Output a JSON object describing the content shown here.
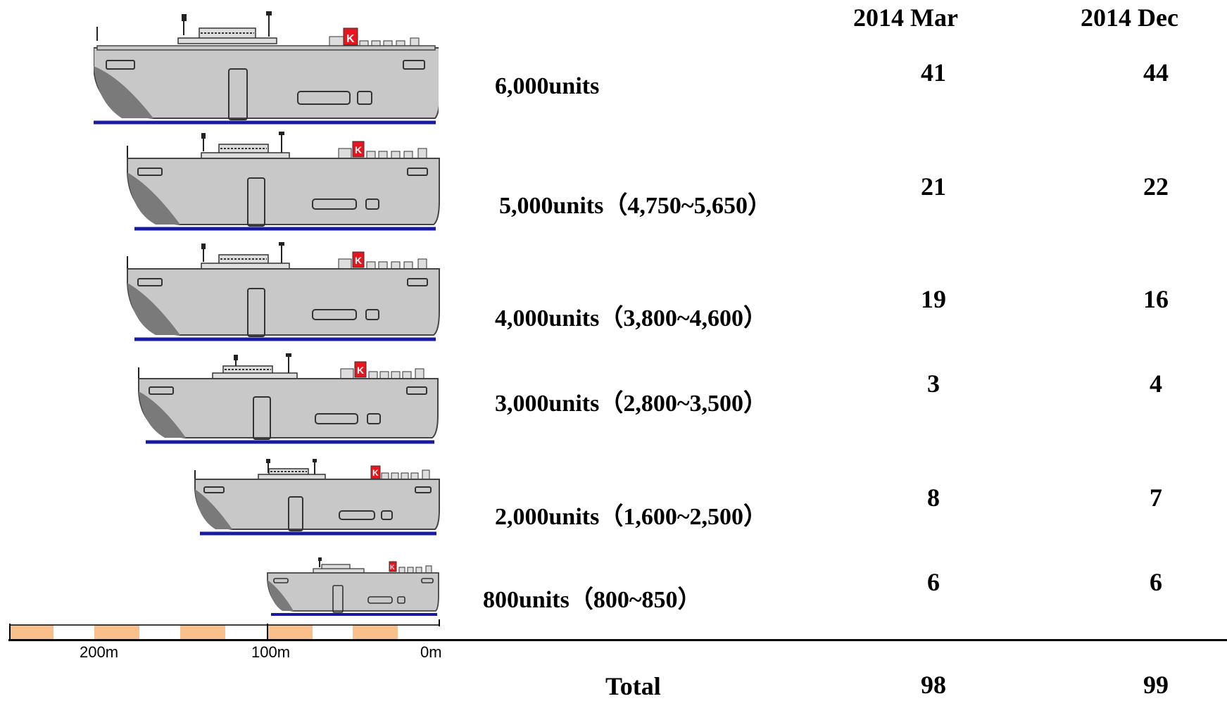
{
  "headers": {
    "col1": "2014 Mar",
    "col2": "2014 Dec"
  },
  "ships": [
    {
      "label": "6,000units",
      "mar": "41",
      "dec": "44"
    },
    {
      "label": "5,000units（4,750~5,650）",
      "mar": "21",
      "dec": "22"
    },
    {
      "label": "4,000units（3,800~4,600）",
      "mar": "19",
      "dec": "16"
    },
    {
      "label": "3,000units（2,800~3,500）",
      "mar": "3",
      "dec": "4"
    },
    {
      "label": "2,000units（1,600~2,500）",
      "mar": "8",
      "dec": "7"
    },
    {
      "label": "800units（800~850）",
      "mar": "6",
      "dec": "6"
    }
  ],
  "funnel_mark": "K",
  "scale": {
    "labels": [
      "200m",
      "100m",
      "0m"
    ]
  },
  "total": {
    "label": "Total",
    "mar": "98",
    "dec": "99"
  },
  "colors": {
    "hull": "#c8c8c8",
    "hull_dark": "#7a7a7a",
    "waterline": "#1a1aa0",
    "funnel": "#e8141e",
    "scale_fill": "#f9c08c"
  }
}
